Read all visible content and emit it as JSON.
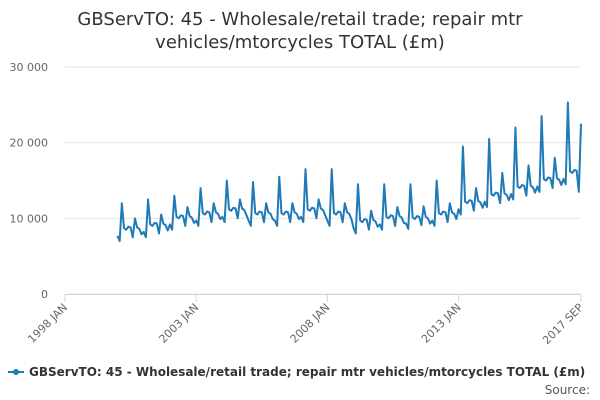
{
  "chart_data": {
    "type": "line",
    "title": "GBServTO: 45 - Wholesale/retail trade; repair mtr vehicles/mtorcycles TOTAL (£m)",
    "source": "Source:",
    "xlim": [
      "1998-01",
      "2017-09"
    ],
    "xticks": [
      {
        "value": "1998-01",
        "label": "1998 JAN"
      },
      {
        "value": "2003-01",
        "label": "2003 JAN"
      },
      {
        "value": "2008-01",
        "label": "2008 JAN"
      },
      {
        "value": "2013-01",
        "label": "2013 JAN"
      },
      {
        "value": "2017-09",
        "label": "2017 SEP"
      }
    ],
    "ylim": [
      0,
      30000
    ],
    "yticks": [
      0,
      {
        "value": 10000,
        "label": "10 000"
      },
      {
        "value": 20000,
        "label": "20 000"
      },
      {
        "value": 30000,
        "label": "30 000"
      }
    ],
    "grid": true,
    "x": [
      "2000-01",
      "2000-02",
      "2000-03",
      "2000-04",
      "2000-05",
      "2000-06",
      "2000-07",
      "2000-08",
      "2000-09",
      "2000-10",
      "2000-11",
      "2000-12",
      "2001-01",
      "2001-02",
      "2001-03",
      "2001-04",
      "2001-05",
      "2001-06",
      "2001-07",
      "2001-08",
      "2001-09",
      "2001-10",
      "2001-11",
      "2001-12",
      "2002-01",
      "2002-02",
      "2002-03",
      "2002-04",
      "2002-05",
      "2002-06",
      "2002-07",
      "2002-08",
      "2002-09",
      "2002-10",
      "2002-11",
      "2002-12",
      "2003-01",
      "2003-02",
      "2003-03",
      "2003-04",
      "2003-05",
      "2003-06",
      "2003-07",
      "2003-08",
      "2003-09",
      "2003-10",
      "2003-11",
      "2003-12",
      "2004-01",
      "2004-02",
      "2004-03",
      "2004-04",
      "2004-05",
      "2004-06",
      "2004-07",
      "2004-08",
      "2004-09",
      "2004-10",
      "2004-11",
      "2004-12",
      "2005-01",
      "2005-02",
      "2005-03",
      "2005-04",
      "2005-05",
      "2005-06",
      "2005-07",
      "2005-08",
      "2005-09",
      "2005-10",
      "2005-11",
      "2005-12",
      "2006-01",
      "2006-02",
      "2006-03",
      "2006-04",
      "2006-05",
      "2006-06",
      "2006-07",
      "2006-08",
      "2006-09",
      "2006-10",
      "2006-11",
      "2006-12",
      "2007-01",
      "2007-02",
      "2007-03",
      "2007-04",
      "2007-05",
      "2007-06",
      "2007-07",
      "2007-08",
      "2007-09",
      "2007-10",
      "2007-11",
      "2007-12",
      "2008-01",
      "2008-02",
      "2008-03",
      "2008-04",
      "2008-05",
      "2008-06",
      "2008-07",
      "2008-08",
      "2008-09",
      "2008-10",
      "2008-11",
      "2008-12",
      "2009-01",
      "2009-02",
      "2009-03",
      "2009-04",
      "2009-05",
      "2009-06",
      "2009-07",
      "2009-08",
      "2009-09",
      "2009-10",
      "2009-11",
      "2009-12",
      "2010-01",
      "2010-02",
      "2010-03",
      "2010-04",
      "2010-05",
      "2010-06",
      "2010-07",
      "2010-08",
      "2010-09",
      "2010-10",
      "2010-11",
      "2010-12",
      "2011-01",
      "2011-02",
      "2011-03",
      "2011-04",
      "2011-05",
      "2011-06",
      "2011-07",
      "2011-08",
      "2011-09",
      "2011-10",
      "2011-11",
      "2011-12",
      "2012-01",
      "2012-02",
      "2012-03",
      "2012-04",
      "2012-05",
      "2012-06",
      "2012-07",
      "2012-08",
      "2012-09",
      "2012-10",
      "2012-11",
      "2012-12",
      "2013-01",
      "2013-02",
      "2013-03",
      "2013-04",
      "2013-05",
      "2013-06",
      "2013-07",
      "2013-08",
      "2013-09",
      "2013-10",
      "2013-11",
      "2013-12",
      "2014-01",
      "2014-02",
      "2014-03",
      "2014-04",
      "2014-05",
      "2014-06",
      "2014-07",
      "2014-08",
      "2014-09",
      "2014-10",
      "2014-11",
      "2014-12",
      "2015-01",
      "2015-02",
      "2015-03",
      "2015-04",
      "2015-05",
      "2015-06",
      "2015-07",
      "2015-08",
      "2015-09",
      "2015-10",
      "2015-11",
      "2015-12",
      "2016-01",
      "2016-02",
      "2016-03",
      "2016-04",
      "2016-05",
      "2016-06",
      "2016-07",
      "2016-08",
      "2016-09",
      "2016-10",
      "2016-11",
      "2016-12",
      "2017-01",
      "2017-02",
      "2017-03",
      "2017-04",
      "2017-05",
      "2017-06",
      "2017-07",
      "2017-08",
      "2017-09"
    ],
    "series": [
      {
        "name": "GBServTO: 45 - Wholesale/retail trade; repair mtr vehicles/mtorcycles TOTAL (£m)",
        "color": "#1f7ab8",
        "values": [
          7700,
          7000,
          12000,
          8700,
          8500,
          8900,
          8800,
          7500,
          10000,
          8800,
          8600,
          7900,
          8200,
          7500,
          12500,
          9200,
          9000,
          9400,
          9300,
          8000,
          10500,
          9300,
          9100,
          8400,
          9200,
          8500,
          13000,
          10200,
          10000,
          10400,
          10300,
          9000,
          11500,
          10300,
          10100,
          9400,
          9700,
          9000,
          14000,
          10700,
          10500,
          10900,
          10800,
          9500,
          12000,
          10800,
          10600,
          9900,
          10200,
          9500,
          15000,
          11200,
          11000,
          11400,
          11300,
          10000,
          12500,
          11300,
          11100,
          10400,
          9700,
          9000,
          14800,
          10700,
          10500,
          10900,
          10800,
          9500,
          12000,
          10800,
          10600,
          9900,
          9700,
          9000,
          15500,
          10700,
          10500,
          10900,
          10800,
          9500,
          12000,
          10800,
          10600,
          9900,
          10200,
          9500,
          16500,
          11200,
          11000,
          11400,
          11300,
          10000,
          12500,
          11300,
          11100,
          10400,
          9700,
          9000,
          16500,
          10700,
          10500,
          10900,
          10800,
          9500,
          12000,
          10800,
          10600,
          9900,
          8700,
          8000,
          14500,
          9700,
          9500,
          9900,
          9800,
          8500,
          11000,
          9800,
          9600,
          8900,
          9200,
          8500,
          14500,
          10200,
          10000,
          10400,
          10300,
          9000,
          11500,
          10300,
          10100,
          9400,
          9300,
          8600,
          14500,
          10100,
          9900,
          10300,
          10200,
          9100,
          11600,
          10200,
          10000,
          9300,
          9700,
          9000,
          15000,
          10700,
          10500,
          10900,
          10800,
          9500,
          12000,
          10800,
          10600,
          9900,
          11200,
          10500,
          19500,
          12200,
          12000,
          12400,
          12300,
          11000,
          14000,
          12300,
          12100,
          11400,
          12200,
          11500,
          20500,
          13200,
          13000,
          13400,
          13300,
          12000,
          16000,
          13300,
          13100,
          12400,
          13200,
          12500,
          22000,
          14200,
          14000,
          14400,
          14300,
          13000,
          17000,
          14300,
          14100,
          13400,
          14200,
          13500,
          23500,
          15200,
          15000,
          15400,
          15300,
          14000,
          18000,
          15300,
          15100,
          14400,
          15200,
          14500,
          25300,
          16200,
          16000,
          16400,
          16300,
          13500,
          22500
        ]
      }
    ]
  }
}
